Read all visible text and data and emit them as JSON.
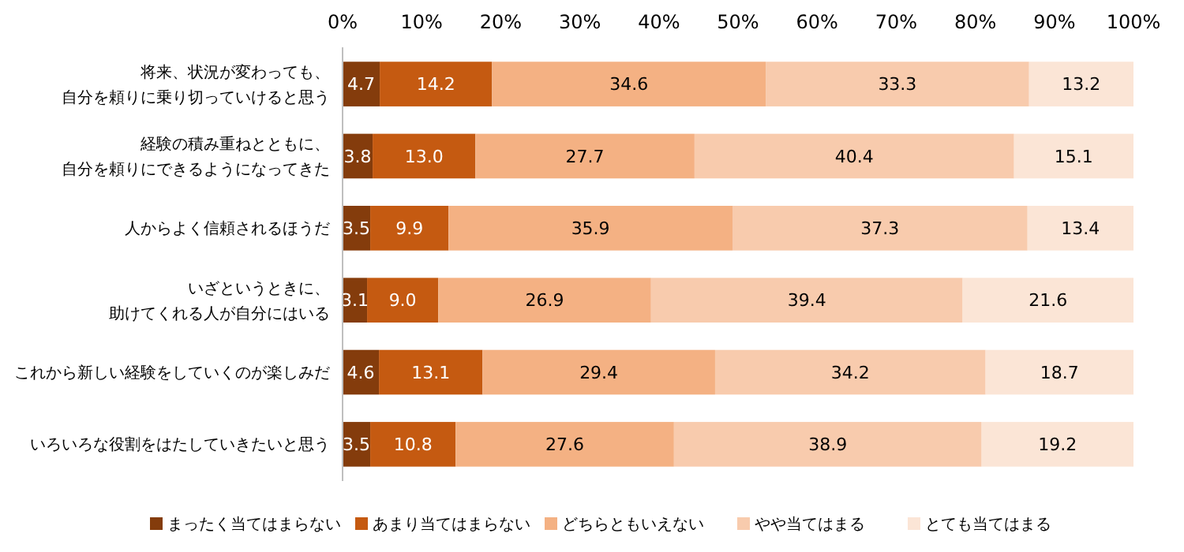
{
  "chart_data": {
    "type": "bar",
    "orientation": "horizontal",
    "stacked": true,
    "data_labels": true,
    "legend": "bottom",
    "grid": false,
    "categories": [
      "将来、状況が変わっても、自分を頼りに乗り切っていけると思う",
      "経験の積み重ねとともに、自分を頼りにできるようになってきた",
      "人からよく信頼されるほうだ",
      "いざというときに、助けてくれる人が自分にはいる",
      "これから新しい経験をしていくのが楽しみだ",
      "いろいろな役割をはたしていきたいと思う"
    ],
    "xlim": [
      0,
      100
    ],
    "xticks": [
      {
        "value": 0,
        "label": "0%"
      },
      {
        "value": 10,
        "label": "10%"
      },
      {
        "value": 20,
        "label": "20%"
      },
      {
        "value": 30,
        "label": "30%"
      },
      {
        "value": 40,
        "label": "40%"
      },
      {
        "value": 50,
        "label": "50%"
      },
      {
        "value": 60,
        "label": "60%"
      },
      {
        "value": 70,
        "label": "70%"
      },
      {
        "value": 80,
        "label": "80%"
      },
      {
        "value": 90,
        "label": "90%"
      },
      {
        "value": 100,
        "label": "100%"
      }
    ],
    "series": [
      {
        "name": "まったく当てはまらない",
        "color": "#843c0c",
        "values": [
          4.7,
          3.8,
          3.5,
          3.1,
          4.6,
          3.5
        ]
      },
      {
        "name": "あまり当てはまらない",
        "color": "#c55a11",
        "values": [
          14.2,
          13.0,
          9.9,
          9.0,
          13.1,
          10.8
        ],
        "value_labels": [
          "14.2",
          "13.0",
          "9.9",
          "9.0",
          "13.1",
          "10.8"
        ]
      },
      {
        "name": "どちらともいえない",
        "color": "#f4b183",
        "values": [
          34.6,
          27.7,
          35.9,
          26.9,
          29.4,
          27.6
        ]
      },
      {
        "name": "やや当てはまる",
        "color": "#f8cbad",
        "values": [
          33.3,
          40.4,
          37.3,
          39.4,
          34.2,
          38.9
        ]
      },
      {
        "name": "とても当てはまる",
        "color": "#fbe5d6",
        "values": [
          13.2,
          15.1,
          13.4,
          21.6,
          18.7,
          19.2
        ]
      }
    ]
  }
}
